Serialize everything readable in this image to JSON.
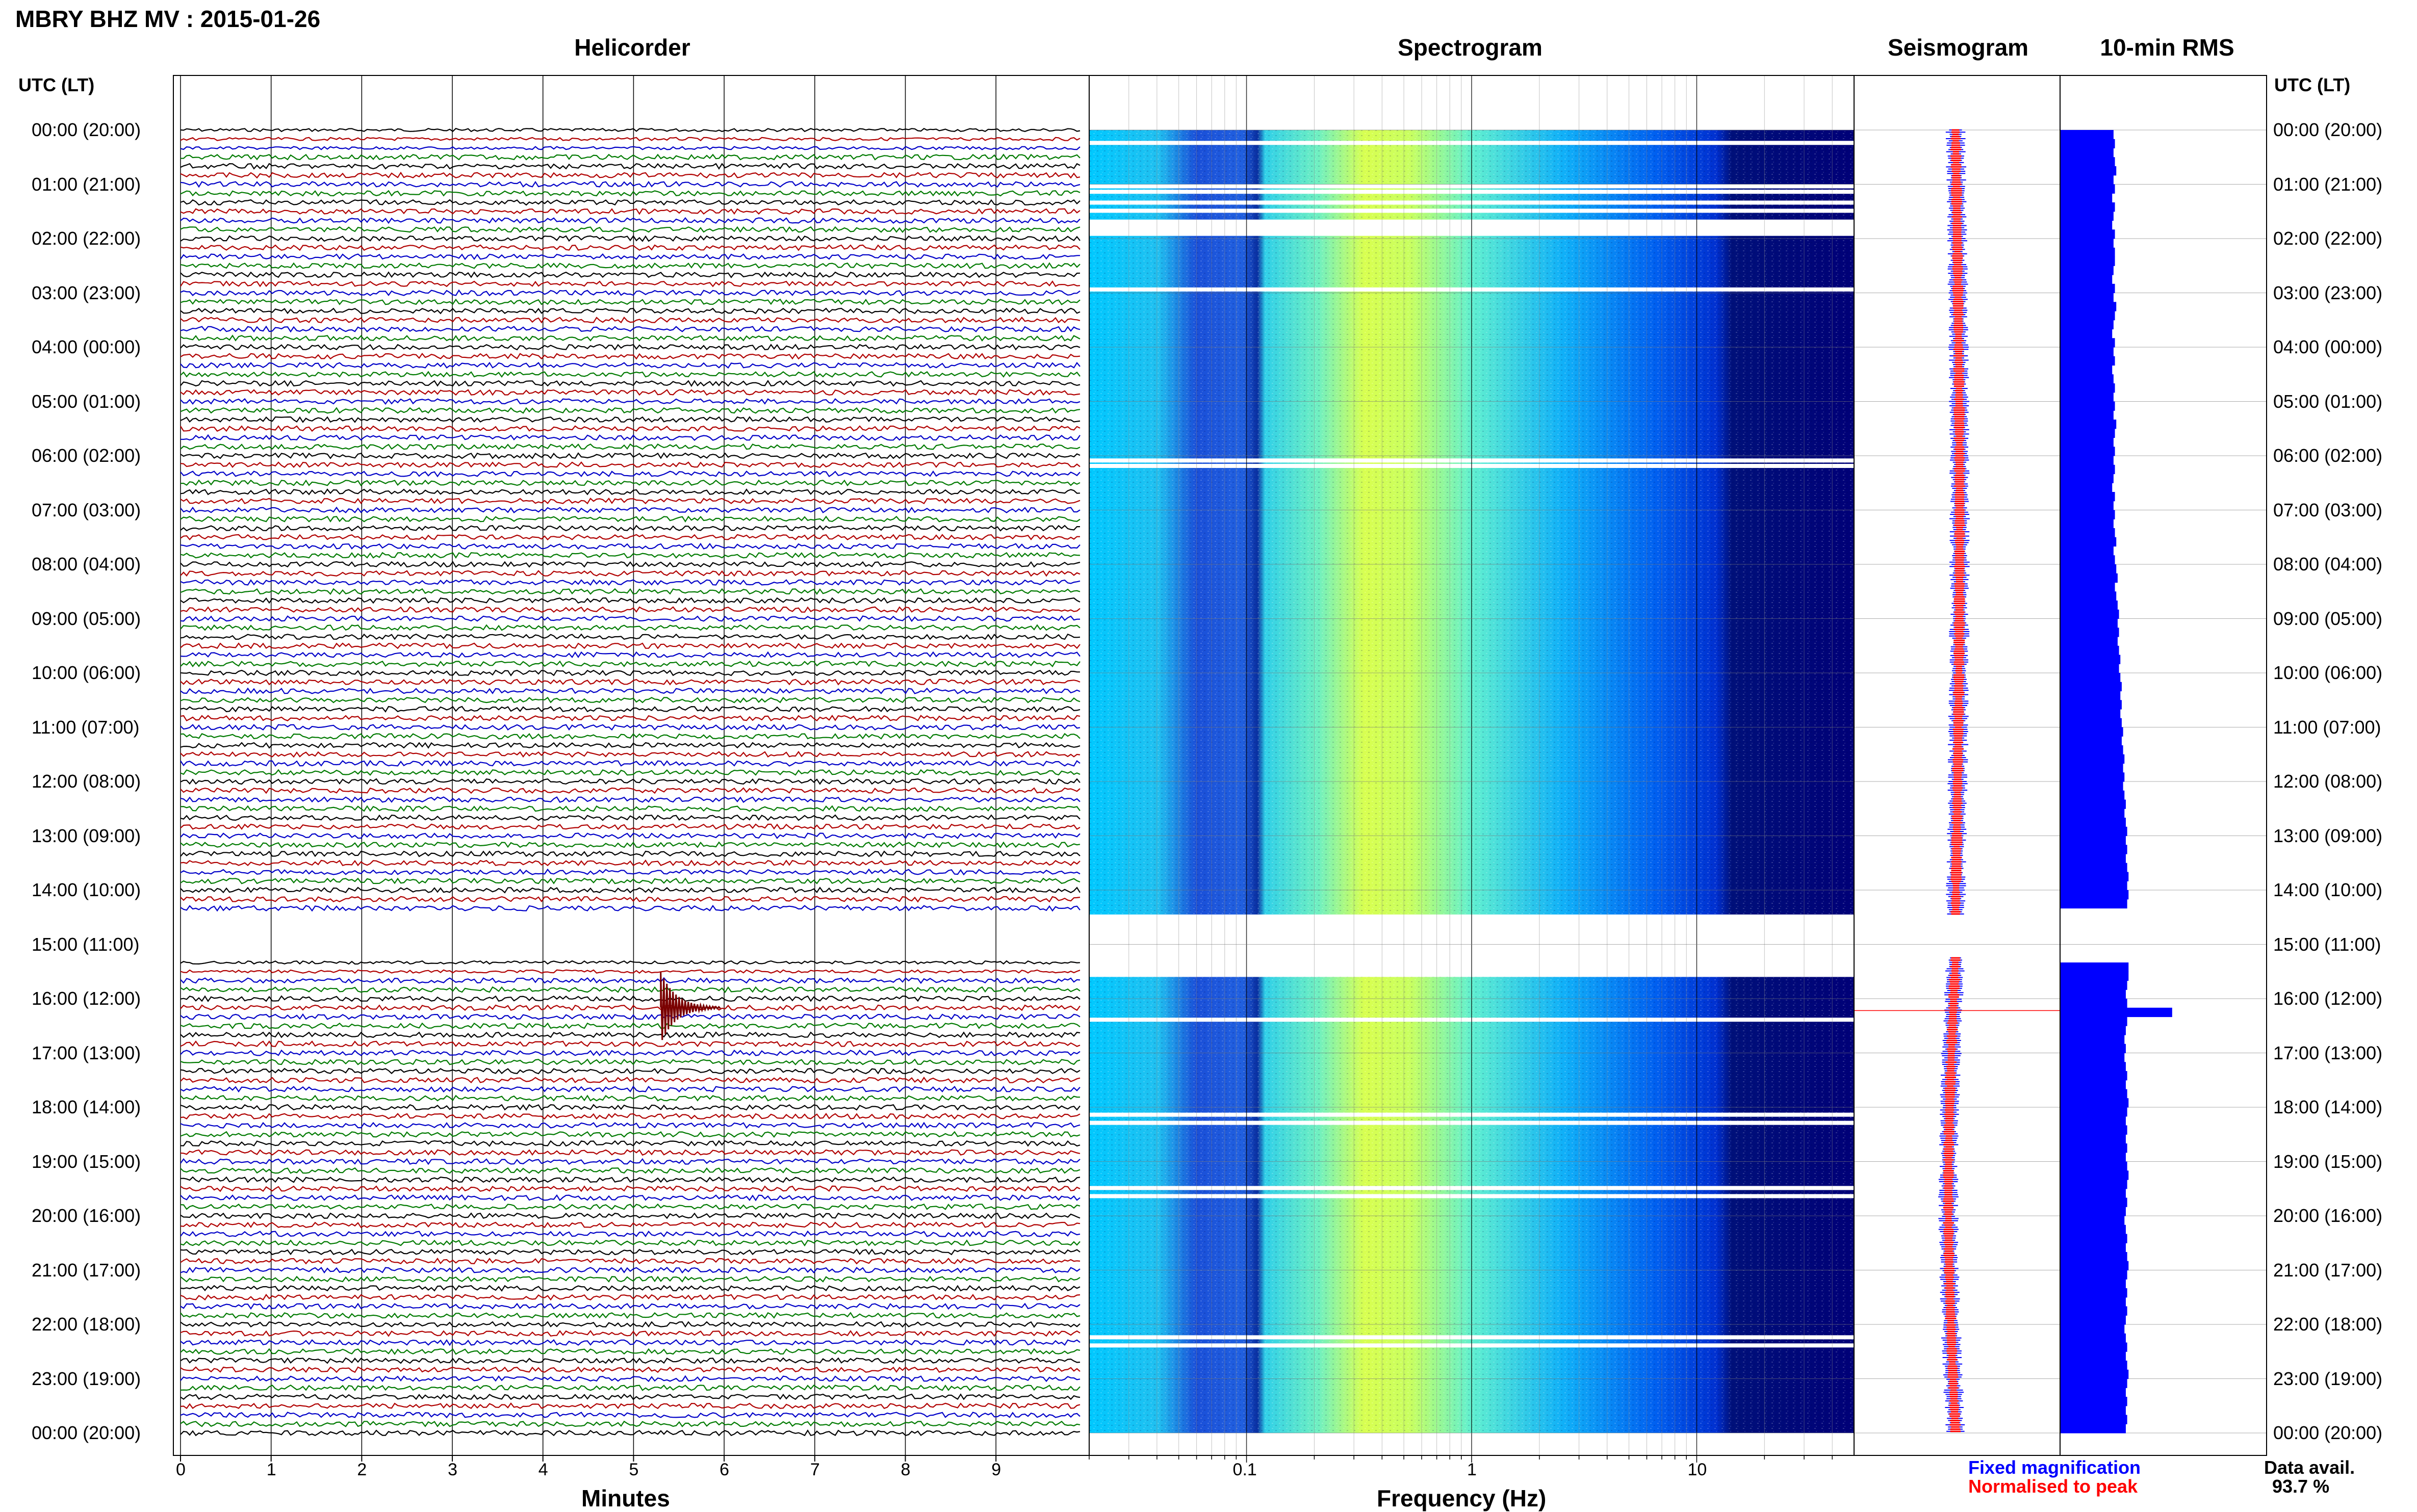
{
  "header": {
    "title": "MBRY BHZ MV : 2015-01-26"
  },
  "panels": {
    "helicorder": "Helicorder",
    "spectrogram": "Spectrogram",
    "seismogram": "Seismogram",
    "rms": "10-min RMS"
  },
  "time_axis": {
    "heading": "UTC (LT)",
    "labels": [
      "00:00 (20:00)",
      "01:00 (21:00)",
      "02:00 (22:00)",
      "03:00 (23:00)",
      "04:00 (00:00)",
      "05:00 (01:00)",
      "06:00 (02:00)",
      "07:00 (03:00)",
      "08:00 (04:00)",
      "09:00 (05:00)",
      "10:00 (06:00)",
      "11:00 (07:00)",
      "12:00 (08:00)",
      "13:00 (09:00)",
      "14:00 (10:00)",
      "15:00 (11:00)",
      "16:00 (12:00)",
      "17:00 (13:00)",
      "18:00 (14:00)",
      "19:00 (15:00)",
      "20:00 (16:00)",
      "21:00 (17:00)",
      "22:00 (18:00)",
      "23:00 (19:00)",
      "00:00 (20:00)"
    ]
  },
  "chart_data": [
    {
      "type": "line",
      "name": "helicorder",
      "xlabel": "Minutes",
      "x_ticks": [
        "0",
        "1",
        "2",
        "3",
        "4",
        "5",
        "6",
        "7",
        "8",
        "9"
      ],
      "xlim": [
        0,
        10
      ],
      "trace_colors": [
        "#000000",
        "#b00000",
        "#0000c8",
        "#007a00"
      ],
      "rows_per_hour": 6,
      "gaps_utc": [
        "14:20-15:20"
      ],
      "event": {
        "utc": "16:10",
        "minute": 5.3,
        "color": "#7a0000"
      }
    },
    {
      "type": "heatmap",
      "name": "spectrogram",
      "xlabel": "Frequency (Hz)",
      "x_scale": "log",
      "x_ticks": [
        "0.1",
        "1",
        "10"
      ],
      "xlim": [
        0.02,
        50
      ],
      "colormap": [
        "#00007a",
        "#0033ff",
        "#00bfff",
        "#7fffb0",
        "#e6ff40"
      ],
      "peak_band_hz": [
        0.3,
        0.5
      ],
      "gaps_utc": [
        "01:40-02:00",
        "14:30-15:20"
      ]
    },
    {
      "type": "line",
      "name": "seismogram",
      "colors": [
        "#0000ff",
        "#ff0000"
      ]
    },
    {
      "type": "bar",
      "name": "rms",
      "orientation": "horizontal",
      "color": "#0000ff",
      "values_relative": [
        0.37,
        0.38,
        0.37,
        0.38,
        0.39,
        0.37,
        0.38,
        0.36,
        0.38,
        0.37,
        0.36,
        0.38,
        0.37,
        0.38,
        0.38,
        0.37,
        0.36,
        0.38,
        0.37,
        0.39,
        0.38,
        0.37,
        0.36,
        0.38,
        0.37,
        0.38,
        0.36,
        0.37,
        0.38,
        0.37,
        0.38,
        0.37,
        0.39,
        0.38,
        0.37,
        0.38,
        0.37,
        0.38,
        0.37,
        0.36,
        0.38,
        0.37,
        0.38,
        0.37,
        0.38,
        0.39,
        0.37,
        0.38,
        0.39,
        0.4,
        0.38,
        0.39,
        0.4,
        0.41,
        0.4,
        0.41,
        0.4,
        0.41,
        0.42,
        0.41,
        0.42,
        0.43,
        0.42,
        0.43,
        0.42,
        0.43,
        0.44,
        0.43,
        0.44,
        0.45,
        0.44,
        0.45,
        0.44,
        0.45,
        0.46,
        0.45,
        0.46,
        0.47,
        0.46,
        0.47,
        0.46,
        0.47,
        0.48,
        0.47,
        0.48,
        0.47,
        0.0,
        0.0,
        0.0,
        0.0,
        0.0,
        0.0,
        0.48,
        0.48,
        0.47,
        0.46,
        0.47,
        0.8,
        0.47,
        0.46,
        0.45,
        0.46,
        0.45,
        0.46,
        0.47,
        0.46,
        0.47,
        0.48,
        0.47,
        0.46,
        0.47,
        0.46,
        0.47,
        0.46,
        0.47,
        0.48,
        0.47,
        0.46,
        0.47,
        0.46,
        0.45,
        0.46,
        0.47,
        0.46,
        0.47,
        0.48,
        0.47,
        0.46,
        0.47,
        0.46,
        0.47,
        0.46,
        0.45,
        0.46,
        0.47,
        0.46,
        0.47,
        0.48,
        0.47,
        0.46,
        0.47,
        0.46,
        0.47,
        0.46
      ]
    }
  ],
  "legend": {
    "fixed": "Fixed magnification",
    "normalised": "Normalised to peak",
    "fixed_color": "#0000ff",
    "normalised_color": "#ff0000"
  },
  "availability": {
    "label": "Data avail.",
    "value": "93.7 %"
  }
}
